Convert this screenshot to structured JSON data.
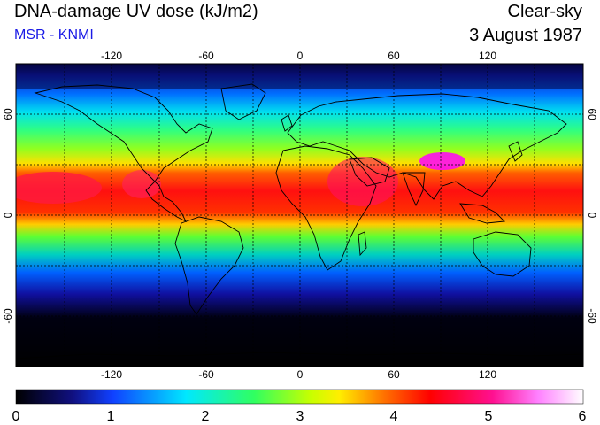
{
  "header": {
    "title": "DNA-damage UV dose (kJ/m2)",
    "source": "MSR - KNMI",
    "condition": "Clear-sky",
    "date": "3 August 1987"
  },
  "map": {
    "lon_ticks": [
      "-120",
      "-60",
      "0",
      "60",
      "120"
    ],
    "lat_ticks_left": [
      "60",
      "0",
      "-60"
    ],
    "lat_ticks_right": [
      "60",
      "0",
      "-60"
    ]
  },
  "colorbar": {
    "labels": [
      "0",
      "1",
      "2",
      "3",
      "4",
      "5",
      "6"
    ],
    "colors": [
      "#000000",
      "#1010a0",
      "#0070ff",
      "#00ffe0",
      "#40ff40",
      "#ffff00",
      "#ff8000",
      "#ff0000",
      "#ff2080",
      "#ff00ff",
      "#ffffff"
    ]
  }
}
